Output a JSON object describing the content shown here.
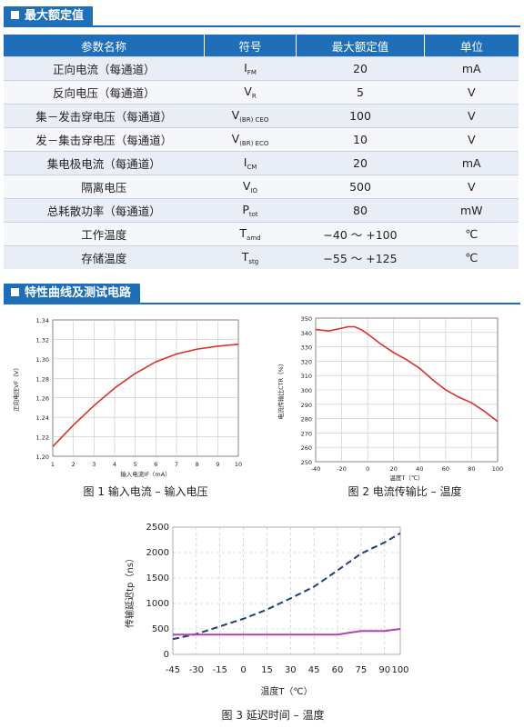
{
  "section1": {
    "title": "最大额定值"
  },
  "table": {
    "headers": [
      "参数名称",
      "符号",
      "最大额定值",
      "单位"
    ],
    "rows": [
      {
        "name": "正向电流（每通道）",
        "sym": "I",
        "sub": "FM",
        "val": "20",
        "unit": "mA"
      },
      {
        "name": "反向电压（每通道）",
        "sym": "V",
        "sub": "R",
        "val": "5",
        "unit": "V"
      },
      {
        "name": "集－发击穿电压（每通道）",
        "sym": "V",
        "sub": "(BR) CEO",
        "val": "100",
        "unit": "V"
      },
      {
        "name": "发－集击穿电压（每通道）",
        "sym": "V",
        "sub": "(BR) ECO",
        "val": "10",
        "unit": "V"
      },
      {
        "name": "集电极电流（每通道）",
        "sym": "I",
        "sub": "CM",
        "val": "20",
        "unit": "mA"
      },
      {
        "name": "隔离电压",
        "sym": "V",
        "sub": "IO",
        "val": "500",
        "unit": "V"
      },
      {
        "name": "总耗散功率（每通道）",
        "sym": "P",
        "sub": "tot",
        "val": "80",
        "unit": "mW"
      },
      {
        "name": "工作温度",
        "sym": "T",
        "sub": "amd",
        "val": "−40 ～ +100",
        "unit": "℃"
      },
      {
        "name": "存储温度",
        "sym": "T",
        "sub": "stg",
        "val": "−55 ～ +125",
        "unit": "℃"
      }
    ]
  },
  "section2": {
    "title": "特性曲线及测试电路"
  },
  "chart_data": [
    {
      "type": "line",
      "caption": "图 1 输入电流 – 输入电压",
      "xlabel": "输入电流I_F（mA）",
      "ylabel": "正向电压V_F（V）",
      "xlim": [
        1,
        10
      ],
      "ylim": [
        1.2,
        1.34
      ],
      "xticks": [
        "1",
        "2",
        "3",
        "4",
        "5",
        "6",
        "7",
        "8",
        "9",
        "10"
      ],
      "yticks": [
        "1.20",
        "1.22",
        "1.24",
        "1.26",
        "1.28",
        "1.30",
        "1.32",
        "1.34"
      ],
      "grid": true,
      "color": "#d9302a",
      "series": [
        {
          "x": [
            1,
            2,
            3,
            4,
            5,
            6,
            7,
            8,
            9,
            10
          ],
          "y": [
            1.21,
            1.232,
            1.252,
            1.27,
            1.285,
            1.297,
            1.305,
            1.31,
            1.313,
            1.315
          ]
        }
      ]
    },
    {
      "type": "line",
      "caption": "图 2 电流传输比 – 温度",
      "xlabel": "温度T（℃）",
      "ylabel": "电流传输比CTR（%）",
      "xlim": [
        -40,
        100
      ],
      "ylim": [
        250,
        350
      ],
      "xticks": [
        "-40",
        "-20",
        "0",
        "20",
        "40",
        "60",
        "80",
        "100"
      ],
      "yticks": [
        "250",
        "260",
        "270",
        "280",
        "290",
        "300",
        "310",
        "320",
        "330",
        "340",
        "350"
      ],
      "grid": true,
      "color": "#d9302a",
      "series": [
        {
          "x": [
            -40,
            -30,
            -20,
            -15,
            -10,
            -5,
            0,
            10,
            20,
            30,
            40,
            50,
            60,
            70,
            80,
            90,
            100
          ],
          "y": [
            342,
            341,
            343,
            344,
            344,
            342,
            339,
            332,
            326,
            321,
            315,
            307,
            300,
            295,
            291,
            285,
            278
          ]
        }
      ]
    },
    {
      "type": "line",
      "caption": "图 3 延迟时间 – 温度",
      "xlabel": "温度T（℃）",
      "ylabel": "传输延迟t_p（ns）",
      "xlim": [
        -45,
        100
      ],
      "ylim": [
        0,
        2500
      ],
      "xticks": [
        "-45",
        "-30",
        "-15",
        "0",
        "15",
        "30",
        "45",
        "60",
        "75",
        "90",
        "100"
      ],
      "yticks": [
        "0",
        "500",
        "1000",
        "1500",
        "2000",
        "2500"
      ],
      "grid": true,
      "series": [
        {
          "style": "dashed",
          "color": "#1f3f7a",
          "x": [
            -45,
            -30,
            -15,
            0,
            15,
            30,
            45,
            60,
            75,
            90,
            100
          ],
          "y": [
            300,
            400,
            550,
            700,
            880,
            1100,
            1330,
            1650,
            1980,
            2200,
            2380
          ]
        },
        {
          "style": "solid",
          "color": "#b340b3",
          "x": [
            -45,
            -30,
            -15,
            0,
            15,
            30,
            45,
            60,
            75,
            90,
            100
          ],
          "y": [
            390,
            390,
            390,
            390,
            390,
            390,
            390,
            390,
            460,
            460,
            500
          ]
        }
      ]
    }
  ]
}
